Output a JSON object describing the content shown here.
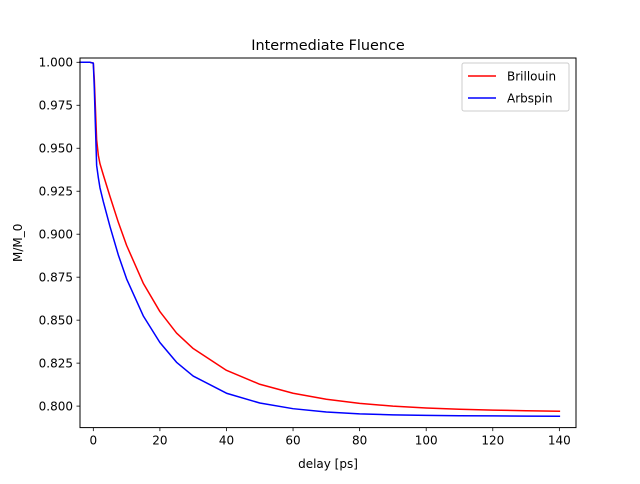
{
  "chart_data": {
    "type": "line",
    "title": "Intermediate Fluence",
    "xlabel": "delay [ps]",
    "ylabel": "M/M_0",
    "xlim": [
      -4,
      145
    ],
    "ylim": [
      0.7875,
      1.0025
    ],
    "xticks": [
      0,
      20,
      40,
      60,
      80,
      100,
      120,
      140
    ],
    "xtick_labels": [
      "0",
      "20",
      "40",
      "60",
      "80",
      "100",
      "120",
      "140"
    ],
    "yticks": [
      0.8,
      0.825,
      0.85,
      0.875,
      0.9,
      0.925,
      0.95,
      0.975,
      1.0
    ],
    "ytick_labels": [
      "0.800",
      "0.825",
      "0.850",
      "0.875",
      "0.900",
      "0.925",
      "0.950",
      "0.975",
      "1.000"
    ],
    "grid": false,
    "legend_position": "top-right",
    "series": [
      {
        "name": "Brillouin",
        "color": "#ff0000",
        "x": [
          -4,
          -2,
          -1,
          0,
          0.3,
          0.6,
          1,
          1.5,
          2,
          3,
          5,
          7.5,
          10,
          15,
          20,
          25,
          30,
          40,
          50,
          60,
          70,
          80,
          90,
          100,
          110,
          120,
          130,
          140
        ],
        "y": [
          1.0,
          1.0,
          1.0,
          0.9995,
          0.99,
          0.975,
          0.955,
          0.946,
          0.941,
          0.9345,
          0.922,
          0.907,
          0.8935,
          0.8715,
          0.855,
          0.8425,
          0.8335,
          0.8208,
          0.8127,
          0.8075,
          0.804,
          0.8016,
          0.8,
          0.7989,
          0.7982,
          0.7977,
          0.7973,
          0.797
        ]
      },
      {
        "name": "Arbspin",
        "color": "#0000ff",
        "x": [
          -4,
          -2,
          -1,
          0,
          0.3,
          0.6,
          1,
          1.5,
          2,
          3,
          5,
          7.5,
          10,
          15,
          20,
          25,
          30,
          40,
          50,
          60,
          70,
          80,
          90,
          100,
          110,
          120,
          130,
          140
        ],
        "y": [
          1.0,
          1.0,
          1.0,
          0.9995,
          0.985,
          0.965,
          0.94,
          0.933,
          0.927,
          0.919,
          0.9045,
          0.888,
          0.874,
          0.8525,
          0.837,
          0.8255,
          0.8175,
          0.8075,
          0.8018,
          0.7985,
          0.7966,
          0.7955,
          0.7949,
          0.7946,
          0.7944,
          0.7943,
          0.7942,
          0.7941
        ]
      }
    ]
  }
}
